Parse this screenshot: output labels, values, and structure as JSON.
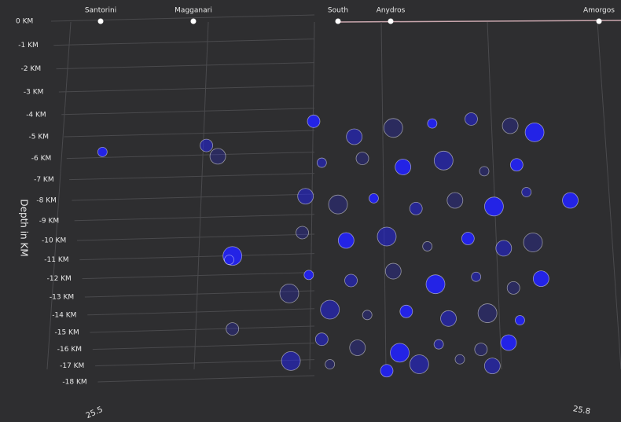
{
  "chart_data": {
    "type": "scatter",
    "y_label": "Depth in KM",
    "annotations": [
      "Santorini",
      "Magganari",
      "South",
      "Anydros",
      "Amorgos"
    ],
    "color": "#2323e6",
    "xlim": [
      25.5,
      25.8
    ],
    "xticks": [
      25.5,
      25.8
    ],
    "ylim": [
      -18,
      0
    ],
    "yticks": [
      {
        "value": 0,
        "label": "0 KM"
      },
      {
        "value": -1,
        "label": "-1 KM"
      },
      {
        "value": -2,
        "label": "-2 KM"
      },
      {
        "value": -3,
        "label": "-3 KM"
      },
      {
        "value": -4,
        "label": "-4 KM"
      },
      {
        "value": -5,
        "label": "-5 KM"
      },
      {
        "value": -6,
        "label": "-6 KM"
      },
      {
        "value": -7,
        "label": "-7 KM"
      },
      {
        "value": -8,
        "label": "-8 KM"
      },
      {
        "value": -9,
        "label": "-9 KM"
      },
      {
        "value": -10,
        "label": "-10 KM"
      },
      {
        "value": -11,
        "label": "-11 KM"
      },
      {
        "value": -12,
        "label": "-12 KM"
      },
      {
        "value": -13,
        "label": "-13 KM"
      },
      {
        "value": -14,
        "label": "-14 KM"
      },
      {
        "value": -15,
        "label": "-15 KM"
      },
      {
        "value": -16,
        "label": "-16 KM"
      },
      {
        "value": -17,
        "label": "-17 KM"
      },
      {
        "value": -18,
        "label": "-18 KM"
      }
    ],
    "grid": true,
    "x": [
      25.505,
      25.569,
      25.576,
      25.585,
      25.583,
      25.585,
      25.793,
      25.621,
      25.645,
      25.635,
      25.66,
      25.684,
      25.708,
      25.732,
      25.756,
      25.771,
      25.64,
      25.665,
      25.69,
      25.715,
      25.74,
      25.76,
      25.63,
      25.65,
      25.672,
      25.698,
      25.722,
      25.746,
      25.766,
      25.628,
      25.655,
      25.68,
      25.705,
      25.73,
      25.752,
      25.77,
      25.632,
      25.658,
      25.684,
      25.71,
      25.735,
      25.758,
      25.775,
      25.645,
      25.668,
      25.692,
      25.718,
      25.742,
      25.762,
      25.64,
      25.662,
      25.688,
      25.712,
      25.738,
      25.755,
      25.7,
      25.725,
      25.68,
      25.745,
      25.62
    ],
    "values": [
      -5.7,
      -5.4,
      -5.9,
      -10.8,
      -11.0,
      -14.8,
      -8.0,
      -16.7,
      -16.9,
      -4.3,
      -5.0,
      -4.6,
      -4.4,
      -4.2,
      -4.5,
      -4.8,
      -6.2,
      -6.0,
      -6.4,
      -6.1,
      -6.6,
      -6.3,
      -7.8,
      -8.2,
      -7.9,
      -8.4,
      -8.0,
      -8.3,
      -7.6,
      -9.6,
      -10.0,
      -9.8,
      -10.3,
      -9.9,
      -10.4,
      -10.1,
      -11.8,
      -12.1,
      -11.6,
      -12.3,
      -11.9,
      -12.5,
      -12.0,
      -13.7,
      -14.0,
      -13.8,
      -14.2,
      -13.9,
      -14.3,
      -15.4,
      -15.9,
      -16.2,
      -15.7,
      -16.0,
      -15.6,
      -16.9,
      -16.6,
      -17.3,
      -17.0,
      -12.8
    ]
  }
}
